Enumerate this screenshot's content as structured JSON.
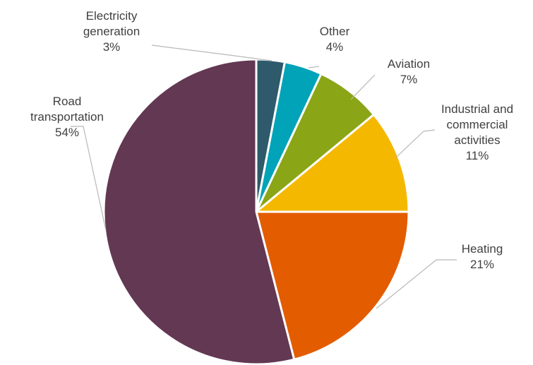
{
  "chart_data": {
    "type": "pie",
    "start_angle_deg": 0,
    "direction": "clockwise",
    "slices": [
      {
        "label_lines": [
          "Electricity",
          "generation"
        ],
        "value_label": "3%",
        "value": 3,
        "color": "#2e5a6b"
      },
      {
        "label_lines": [
          "Other"
        ],
        "value_label": "4%",
        "value": 4,
        "color": "#00a3b8"
      },
      {
        "label_lines": [
          "Aviation"
        ],
        "value_label": "7%",
        "value": 7,
        "color": "#8aa515"
      },
      {
        "label_lines": [
          "Industrial and",
          "commercial",
          "activities"
        ],
        "value_label": "11%",
        "value": 11,
        "color": "#f5b800"
      },
      {
        "label_lines": [
          "Heating"
        ],
        "value_label": "21%",
        "value": 21,
        "color": "#e35c00"
      },
      {
        "label_lines": [
          "Road",
          "transportation"
        ],
        "value_label": "54%",
        "value": 54,
        "color": "#623853"
      }
    ]
  }
}
